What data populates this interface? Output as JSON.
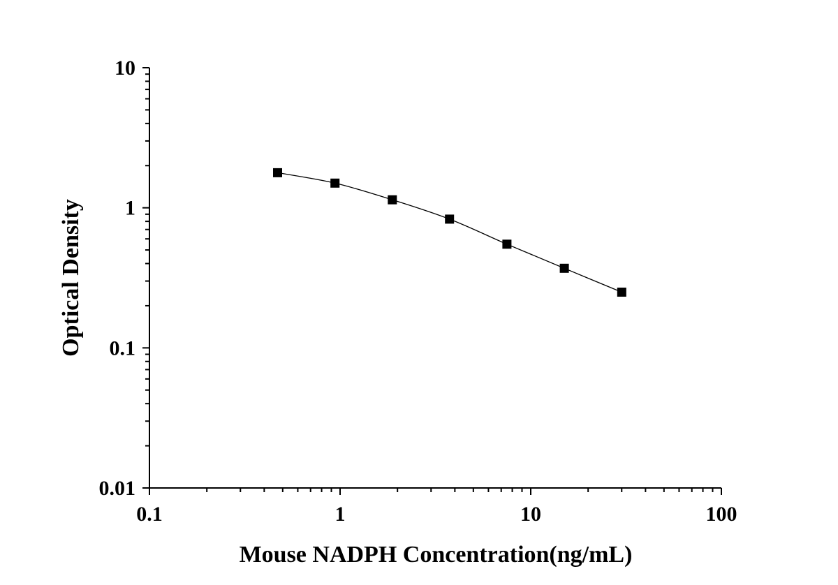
{
  "chart_data": {
    "type": "scatter",
    "title": "",
    "xlabel": "Mouse NADPH Concentration(ng/mL)",
    "ylabel": "Optical Density",
    "x_scale": "log",
    "y_scale": "log",
    "xlim": [
      0.1,
      100
    ],
    "ylim": [
      0.01,
      10
    ],
    "x_tick_labels": [
      "0.1",
      "1",
      "10",
      "100"
    ],
    "y_tick_labels": [
      "0.01",
      "0.1",
      "1",
      "10"
    ],
    "grid": false,
    "legend": "none",
    "fitted_curve": true,
    "series": [
      {
        "x": [
          0.47,
          0.94,
          1.88,
          3.75,
          7.5,
          15,
          30
        ],
        "y": [
          1.78,
          1.5,
          1.14,
          0.83,
          0.55,
          0.37,
          0.25
        ]
      }
    ]
  }
}
